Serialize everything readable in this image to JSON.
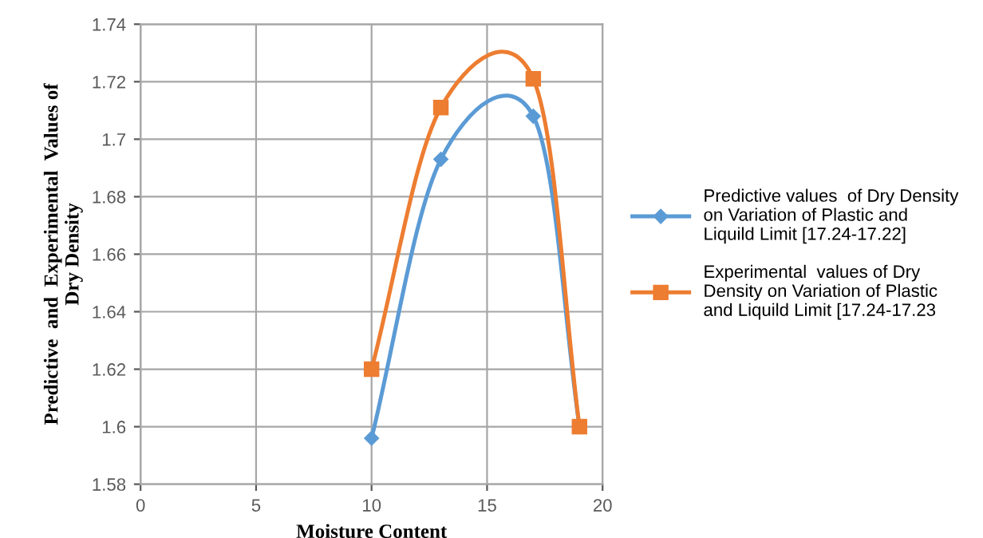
{
  "chart_data": {
    "type": "line",
    "xlabel": "Moisture Content",
    "ylabel": "Predictive  and  Experimental  Values of Dry Density",
    "x": [
      10,
      13,
      17,
      19
    ],
    "series": [
      {
        "name": "Predictive values  of Dry Density on Variation of Plastic and Liquild Limit [17.24-17.22]",
        "color": "#5b9bd5",
        "marker": "diamond",
        "values": [
          1.596,
          1.693,
          1.708,
          1.6
        ]
      },
      {
        "name": "Experimental  values of Dry Density on Variation of Plastic and Liquild Limit [17.24-17.23",
        "color": "#ed7d31",
        "marker": "square",
        "values": [
          1.62,
          1.711,
          1.721,
          1.6
        ]
      }
    ],
    "xlim": [
      0,
      20
    ],
    "xticks": [
      0,
      5,
      10,
      15,
      20
    ],
    "ylim": [
      1.58,
      1.74
    ],
    "yticks": [
      1.58,
      1.6,
      1.62,
      1.64,
      1.66,
      1.68,
      1.7,
      1.72,
      1.74
    ],
    "grid": true,
    "legend": "right",
    "line_style": "solid"
  }
}
